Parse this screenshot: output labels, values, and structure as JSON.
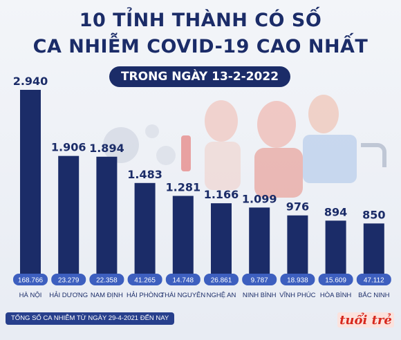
{
  "header": {
    "title_line1": "10 TỈNH THÀNH CÓ SỐ",
    "title_line2": "CA NHIỄM COVID-19 CAO NHẤT",
    "subtitle": "TRONG NGÀY 13-2-2022"
  },
  "footer": {
    "note": "TỔNG SỐ CA NHIỄM TỪ NGÀY 29-4-2021 ĐẾN NAY",
    "logo_text": "tuổi trẻ"
  },
  "colors": {
    "bar": "#1b2c68",
    "cumulative_pill": "#3d5fbf",
    "title": "#1b2c68",
    "logo": "#d7281d"
  },
  "chart_data": {
    "type": "bar",
    "title": "10 TỈNH THÀNH CÓ SỐ CA NHIỄM COVID-19 CAO NHẤT",
    "subtitle": "TRONG NGÀY 13-2-2022",
    "categories": [
      "HÀ NỘI",
      "HẢI DƯƠNG",
      "NAM ĐỊNH",
      "HẢI PHÒNG",
      "THÁI NGUYÊN",
      "NGHỆ AN",
      "NINH BÌNH",
      "VĨNH PHÚC",
      "HÒA BÌNH",
      "BẮC NINH"
    ],
    "values": [
      2940,
      1906,
      1894,
      1483,
      1281,
      1166,
      1099,
      976,
      894,
      850
    ],
    "value_labels": [
      "2.940",
      "1.906",
      "1.894",
      "1.483",
      "1.281",
      "1.166",
      "1.099",
      "976",
      "894",
      "850"
    ],
    "cumulative_labels": [
      "168.766",
      "23.279",
      "22.358",
      "41.265",
      "14.748",
      "26.861",
      "9.787",
      "18.938",
      "15.609",
      "47.112"
    ],
    "cumulative_note": "TỔNG SỐ CA NHIỄM TỪ NGÀY 29-4-2021 ĐẾN NAY",
    "ylim": [
      0,
      2940
    ],
    "grid": false,
    "legend": "none"
  }
}
